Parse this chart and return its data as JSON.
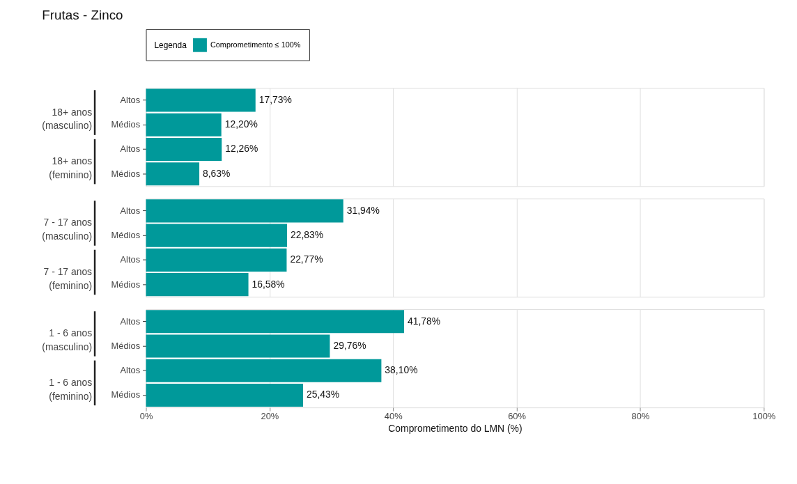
{
  "chart_data": [
    {
      "type": "bar",
      "orientation": "horizontal",
      "title": "Frutas - Zinco",
      "legend_title": "Legenda",
      "legend": "top",
      "categories": [
        "Altos",
        "Médios",
        "Altos",
        "Médios"
      ],
      "series": [
        {
          "name": "Comprometimento ≤ 100%",
          "color": "#00999a",
          "values": [
            17.73,
            12.2,
            12.26,
            8.63
          ],
          "value_labels": [
            "17,73%",
            "12,20%",
            "12,26%",
            "8,63%"
          ]
        }
      ],
      "annotations": [
        "18+ anos\n(masculino)",
        "18+ anos\n(feminino)"
      ],
      "xlim": [
        0,
        100
      ],
      "xticks": [
        0,
        20,
        40,
        60,
        80,
        100
      ],
      "grid": "x",
      "tick_labels": "y"
    },
    {
      "type": "bar",
      "orientation": "horizontal",
      "categories": [
        "Altos",
        "Médios",
        "Altos",
        "Médios"
      ],
      "series": [
        {
          "color": "#00999a",
          "values": [
            31.94,
            22.83,
            22.77,
            16.58
          ],
          "value_labels": [
            "31,94%",
            "22,83%",
            "22,77%",
            "16,58%"
          ]
        }
      ],
      "annotations": [
        "7 - 17 anos\n(masculino)",
        "7 - 17 anos\n(feminino)"
      ],
      "xlim": [
        0,
        100
      ],
      "xticks": [
        0,
        20,
        40,
        60,
        80,
        100
      ],
      "grid": "x",
      "tick_labels": "y"
    },
    {
      "type": "bar",
      "orientation": "horizontal",
      "xlabel": "Comprometimento do LMN (%)",
      "categories": [
        "Altos",
        "Médios",
        "Altos",
        "Médios"
      ],
      "series": [
        {
          "color": "#00999a",
          "values": [
            41.78,
            29.76,
            38.1,
            25.43
          ],
          "value_labels": [
            "41,78%",
            "29,76%",
            "38,10%",
            "25,43%"
          ]
        }
      ],
      "annotations": [
        "1 - 6 anos\n(masculino)",
        "1 - 6 anos\n(feminino)"
      ],
      "xlim": [
        0,
        100
      ],
      "xticks": [
        {
          "value": 0,
          "label": "0%"
        },
        {
          "value": 20,
          "label": "20%"
        },
        {
          "value": 40,
          "label": "40%"
        },
        {
          "value": 60,
          "label": "60%"
        },
        {
          "value": 80,
          "label": "80%"
        },
        {
          "value": 100,
          "label": "100%"
        }
      ],
      "grid": "x"
    }
  ]
}
